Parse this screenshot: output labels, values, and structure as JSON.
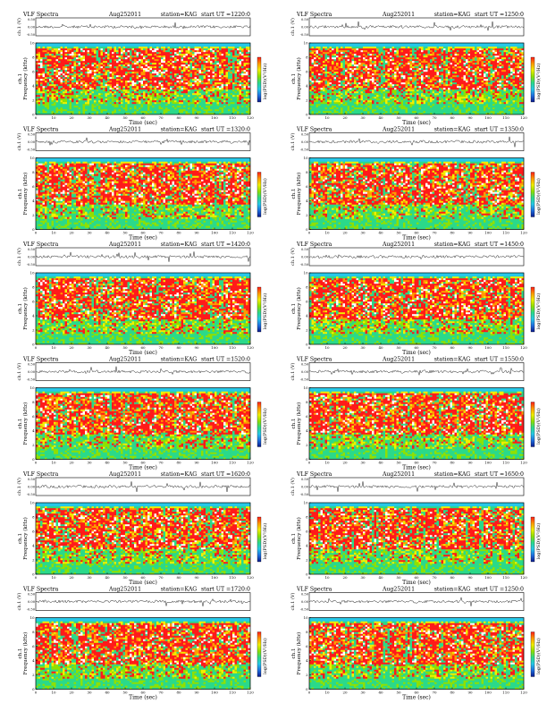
{
  "chart_data": [
    {
      "type": "heatmap",
      "title": "VLF Spectra",
      "date": "Aug252011",
      "station": "station=KAG",
      "start": "start  UT  =1220:0",
      "waveform_ylabel": "ch.1 (V)",
      "waveform_yticks": [
        "0.50",
        "0.00",
        "-0.50"
      ],
      "ylabel": "ch.1\nFrequency  (kHz)",
      "yticks": [
        "0",
        "2",
        "4",
        "6",
        "8",
        "10"
      ],
      "ylim": [
        0,
        10
      ],
      "xlabel": "Time  (sec)",
      "xticks": [
        "0",
        "10",
        "20",
        "30",
        "40",
        "50",
        "60",
        "70",
        "80",
        "90",
        "100",
        "110",
        "120"
      ],
      "xlim": [
        0,
        120
      ],
      "colorbar_label": "log(PSD)(V²/Hz)"
    },
    {
      "type": "heatmap",
      "title": "VLF Spectra",
      "date": "Aug252011",
      "station": "station=KAG",
      "start": "start  UT  =1250:0",
      "waveform_ylabel": "ch.1 (V)",
      "waveform_yticks": [
        "0.50",
        "0.00",
        "-0.50"
      ],
      "ylabel": "ch.1\nFrequency  (kHz)",
      "yticks": [
        "0",
        "2",
        "4",
        "6",
        "8",
        "10"
      ],
      "ylim": [
        0,
        10
      ],
      "xlabel": "Time  (sec)",
      "xticks": [
        "0",
        "10",
        "20",
        "30",
        "40",
        "50",
        "60",
        "70",
        "80",
        "90",
        "100",
        "110",
        "120"
      ],
      "xlim": [
        0,
        120
      ],
      "colorbar_label": "log(PSD)(V²/Hz)"
    },
    {
      "type": "heatmap",
      "title": "VLF Spectra",
      "date": "Aug252011",
      "station": "station=KAG",
      "start": "start  UT  =1320:0",
      "waveform_ylabel": "ch.1 (V)",
      "waveform_yticks": [
        "0.50",
        "0.00",
        "-0.50"
      ],
      "ylabel": "ch.1\nFrequency  (kHz)",
      "yticks": [
        "0",
        "2",
        "4",
        "6",
        "8",
        "10"
      ],
      "ylim": [
        0,
        10
      ],
      "xlabel": "Time  (sec)",
      "xticks": [
        "0",
        "10",
        "20",
        "30",
        "40",
        "50",
        "60",
        "70",
        "80",
        "90",
        "100",
        "110",
        "120"
      ],
      "xlim": [
        0,
        120
      ],
      "colorbar_label": "log(PSD)(V²/Hz)"
    },
    {
      "type": "heatmap",
      "title": "VLF Spectra",
      "date": "Aug252011",
      "station": "station=KAG",
      "start": "start  UT  =1350:0",
      "waveform_ylabel": "ch.1 (V)",
      "waveform_yticks": [
        "0.50",
        "0.00",
        "-0.50"
      ],
      "ylabel": "ch.1\nFrequency  (kHz)",
      "yticks": [
        "0",
        "2",
        "4",
        "6",
        "8",
        "10"
      ],
      "ylim": [
        0,
        10
      ],
      "xlabel": "Time  (sec)",
      "xticks": [
        "0",
        "10",
        "20",
        "30",
        "40",
        "50",
        "60",
        "70",
        "80",
        "90",
        "100",
        "110",
        "120"
      ],
      "xlim": [
        0,
        120
      ],
      "colorbar_label": "log(PSD)(V²/Hz)"
    },
    {
      "type": "heatmap",
      "title": "VLF Spectra",
      "date": "Aug252011",
      "station": "station=KAG",
      "start": "start  UT  =1420:0",
      "waveform_ylabel": "ch.1 (V)",
      "waveform_yticks": [
        "0.50",
        "0.00",
        "-0.50"
      ],
      "ylabel": "ch.1\nFrequency  (kHz)",
      "yticks": [
        "0",
        "2",
        "4",
        "6",
        "8",
        "10"
      ],
      "ylim": [
        0,
        10
      ],
      "xlabel": "Time  (sec)",
      "xticks": [
        "0",
        "10",
        "20",
        "30",
        "40",
        "50",
        "60",
        "70",
        "80",
        "90",
        "100",
        "110",
        "120"
      ],
      "xlim": [
        0,
        120
      ],
      "colorbar_label": "log(PSD)(V²/Hz)"
    },
    {
      "type": "heatmap",
      "title": "VLF Spectra",
      "date": "Aug252011",
      "station": "station=KAG",
      "start": "start  UT  =1450:0",
      "waveform_ylabel": "ch.1 (V)",
      "waveform_yticks": [
        "0.50",
        "0.00",
        "-0.50"
      ],
      "ylabel": "ch.1\nFrequency  (kHz)",
      "yticks": [
        "0",
        "2",
        "4",
        "6",
        "8",
        "10"
      ],
      "ylim": [
        0,
        10
      ],
      "xlabel": "Time  (sec)",
      "xticks": [
        "0",
        "10",
        "20",
        "30",
        "40",
        "50",
        "60",
        "70",
        "80",
        "90",
        "100",
        "110",
        "120"
      ],
      "xlim": [
        0,
        120
      ],
      "colorbar_label": "log(PSD)(V²/Hz)"
    },
    {
      "type": "heatmap",
      "title": "VLF Spectra",
      "date": "Aug252011",
      "station": "station=KAG",
      "start": "start  UT  =1520:0",
      "waveform_ylabel": "ch.1 (V)",
      "waveform_yticks": [
        "0.50",
        "0.00",
        "-0.50"
      ],
      "ylabel": "ch.1\nFrequency  (kHz)",
      "yticks": [
        "0",
        "2",
        "4",
        "6",
        "8",
        "10"
      ],
      "ylim": [
        0,
        10
      ],
      "xlabel": "Time  (sec)",
      "xticks": [
        "0",
        "10",
        "20",
        "30",
        "40",
        "50",
        "60",
        "70",
        "80",
        "90",
        "100",
        "110",
        "120"
      ],
      "xlim": [
        0,
        120
      ],
      "colorbar_label": "log(PSD)(V²/Hz)"
    },
    {
      "type": "heatmap",
      "title": "VLF Spectra",
      "date": "Aug252011",
      "station": "station=KAG",
      "start": "start  UT  =1550:0",
      "waveform_ylabel": "ch.1 (V)",
      "waveform_yticks": [
        "0.50",
        "0.00",
        "-0.50"
      ],
      "ylabel": "ch.1\nFrequency  (kHz)",
      "yticks": [
        "0",
        "2",
        "4",
        "6",
        "8",
        "10"
      ],
      "ylim": [
        0,
        10
      ],
      "xlabel": "Time  (sec)",
      "xticks": [
        "0",
        "10",
        "20",
        "30",
        "40",
        "50",
        "60",
        "70",
        "80",
        "90",
        "100",
        "110",
        "120"
      ],
      "xlim": [
        0,
        120
      ],
      "colorbar_label": "log(PSD)(V²/Hz)"
    },
    {
      "type": "heatmap",
      "title": "VLF Spectra",
      "date": "Aug252011",
      "station": "station=KAG",
      "start": "start  UT  =1620:0",
      "waveform_ylabel": "ch.1 (V)",
      "waveform_yticks": [
        "0.50",
        "0.00",
        "-0.50"
      ],
      "ylabel": "ch.1\nFrequency  (kHz)",
      "yticks": [
        "0",
        "2",
        "4",
        "6",
        "8",
        "10"
      ],
      "ylim": [
        0,
        10
      ],
      "xlabel": "Time  (sec)",
      "xticks": [
        "0",
        "10",
        "20",
        "30",
        "40",
        "50",
        "60",
        "70",
        "80",
        "90",
        "100",
        "110",
        "120"
      ],
      "xlim": [
        0,
        120
      ],
      "colorbar_label": "log(PSD)(V²/Hz)"
    },
    {
      "type": "heatmap",
      "title": "VLF Spectra",
      "date": "Aug252011",
      "station": "station=KAG",
      "start": "start  UT  =1650:0",
      "waveform_ylabel": "ch.1 (V)",
      "waveform_yticks": [
        "0.50",
        "0.00",
        "-0.50"
      ],
      "ylabel": "ch.1\nFrequency  (kHz)",
      "yticks": [
        "0",
        "2",
        "4",
        "6",
        "8",
        "10"
      ],
      "ylim": [
        0,
        10
      ],
      "xlabel": "Time  (sec)",
      "xticks": [
        "0",
        "10",
        "20",
        "30",
        "40",
        "50",
        "60",
        "70",
        "80",
        "90",
        "100",
        "110",
        "120"
      ],
      "xlim": [
        0,
        120
      ],
      "colorbar_label": "log(PSD)(V²/Hz)"
    },
    {
      "type": "heatmap",
      "title": "VLF Spectra",
      "date": "Aug252011",
      "station": "station=KAG",
      "start": "start  UT  =1720:0",
      "waveform_ylabel": "ch.1 (V)",
      "waveform_yticks": [
        "0.50",
        "0.00",
        "-0.50"
      ],
      "ylabel": "ch.1\nFrequency  (kHz)",
      "yticks": [
        "0",
        "2",
        "4",
        "6",
        "8",
        "10"
      ],
      "ylim": [
        0,
        10
      ],
      "xlabel": "Time  (sec)",
      "xticks": [
        "0",
        "10",
        "20",
        "30",
        "40",
        "50",
        "60",
        "70",
        "80",
        "90",
        "100",
        "110",
        "120"
      ],
      "xlim": [
        0,
        120
      ],
      "colorbar_label": "log(PSD)(V²/Hz)"
    },
    {
      "type": "heatmap",
      "title": "VLF Spectra",
      "date": "Aug252011",
      "station": "station=KAG",
      "start": "start  UT  =1250:0",
      "waveform_ylabel": "ch.1 (V)",
      "waveform_yticks": [
        "0.50",
        "0.00",
        "-0.50"
      ],
      "ylabel": "ch.1\nFrequency  (kHz)",
      "yticks": [
        "0",
        "2",
        "4",
        "6",
        "8",
        "10"
      ],
      "ylim": [
        0,
        10
      ],
      "xlabel": "Time  (sec)",
      "xticks": [
        "0",
        "10",
        "20",
        "30",
        "40",
        "50",
        "60",
        "70",
        "80",
        "90",
        "100",
        "110",
        "120"
      ],
      "xlim": [
        0,
        120
      ],
      "colorbar_label": "log(PSD)(V²/Hz)"
    }
  ],
  "colormap": [
    "#0a1a8c",
    "#1f6fe0",
    "#27c8e8",
    "#2bd98a",
    "#8fe000",
    "#f0f000",
    "#ff9a00",
    "#ff1a1a",
    "#ffffff"
  ]
}
